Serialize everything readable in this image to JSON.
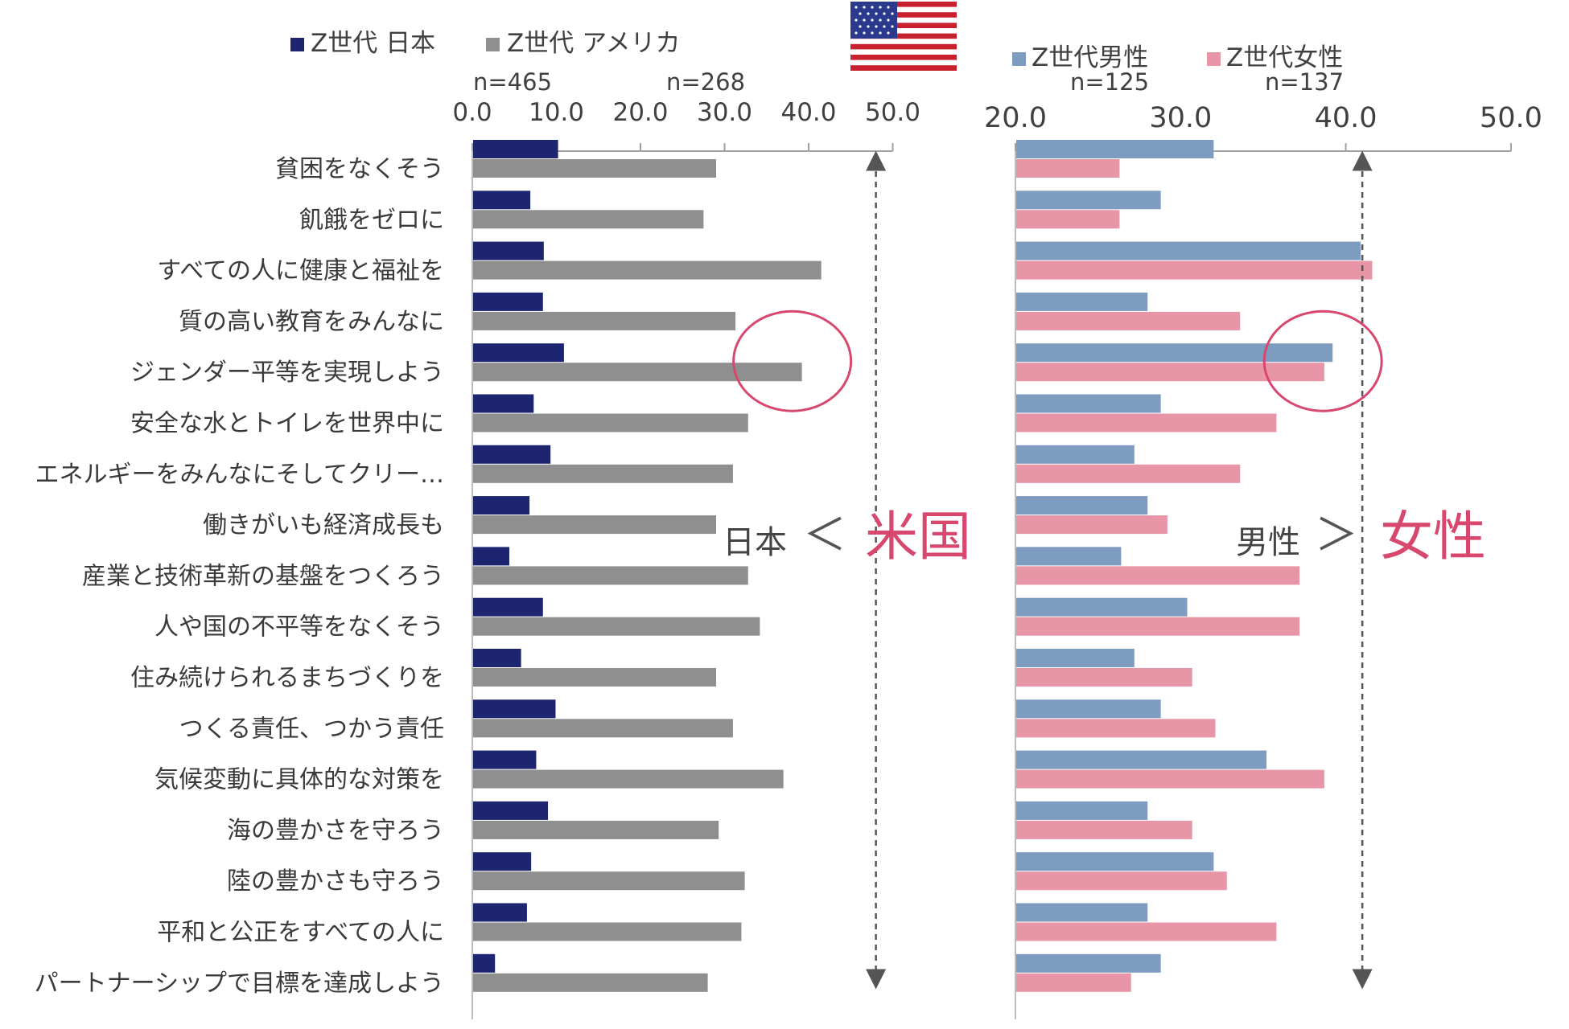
{
  "colors": {
    "japan": "#1d2570",
    "usa": "#8f8f8f",
    "male": "#7e9cc0",
    "female": "#e895a8",
    "highlight": "#d8476e",
    "axis": "#a0a0a0",
    "arrow": "#555555"
  },
  "categories": [
    "貧困をなくそう",
    "飢餓をゼロに",
    "すべての人に健康と福祉を",
    "質の高い教育をみんなに",
    "ジェンダー平等を実現しよう",
    "安全な水とトイレを世界中に",
    "エネルギーをみんなにそしてクリー…",
    "働きがいも経済成長も",
    "産業と技術革新の基盤をつくろう",
    "人や国の不平等をなくそう",
    "住み続けられるまちづくりを",
    "つくる責任、つかう責任",
    "気候変動に具体的な対策を",
    "海の豊かさを守ろう",
    "陸の豊かさも守ろう",
    "平和と公正をすべての人に",
    "パートナーシップで目標を達成しよう"
  ],
  "chart_data": [
    {
      "type": "bar",
      "orientation": "horizontal",
      "xlim": [
        0,
        50
      ],
      "ticks": [
        "0.0",
        "10.0",
        "20.0",
        "30.0",
        "40.0",
        "50.0"
      ],
      "series": [
        {
          "name": "Z世代 日本",
          "n": "n=465",
          "values": [
            10.2,
            6.9,
            8.5,
            8.4,
            10.9,
            7.3,
            9.3,
            6.8,
            4.4,
            8.4,
            5.8,
            9.9,
            7.6,
            9.0,
            7.0,
            6.5,
            2.7
          ]
        },
        {
          "name": "Z世代 アメリカ",
          "n": "n=268",
          "values": [
            29.0,
            27.5,
            41.5,
            31.3,
            39.2,
            32.8,
            31.0,
            29.0,
            32.8,
            34.2,
            29.0,
            31.0,
            37.0,
            29.3,
            32.4,
            32.0,
            28.0
          ]
        }
      ],
      "annotation": {
        "left": "日本",
        "symbol": "＜",
        "right": "米国",
        "reference_line": 48,
        "highlight_category": "ジェンダー平等を実現しよう"
      }
    },
    {
      "type": "bar",
      "orientation": "horizontal",
      "xlim": [
        20,
        50
      ],
      "ticks": [
        "20.0",
        "30.0",
        "40.0",
        "50.0"
      ],
      "series": [
        {
          "name": "Z世代男性",
          "n": "n=125",
          "values": [
            32.0,
            28.8,
            40.9,
            28.0,
            39.2,
            28.8,
            27.2,
            28.0,
            26.4,
            30.4,
            27.2,
            28.8,
            35.2,
            28.0,
            32.0,
            28.0,
            28.8
          ]
        },
        {
          "name": "Z世代女性",
          "n": "n=137",
          "values": [
            26.3,
            26.3,
            41.6,
            33.6,
            38.7,
            35.8,
            33.6,
            29.2,
            37.2,
            37.2,
            30.7,
            32.1,
            38.7,
            30.7,
            32.8,
            35.8,
            27.0
          ]
        }
      ],
      "annotation": {
        "left": "男性",
        "symbol": "＞",
        "right": "女性",
        "reference_line": 41,
        "highlight_category": "ジェンダー平等を実現しよう"
      }
    }
  ]
}
